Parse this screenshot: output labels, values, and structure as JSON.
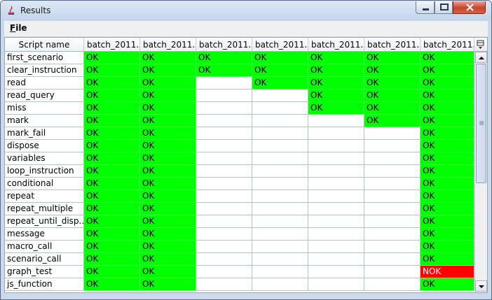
{
  "window": {
    "title": "Results"
  },
  "menu": {
    "file": "File"
  },
  "table": {
    "columns": [
      "Script name",
      "batch_2011...",
      "batch_2011...",
      "batch_2011...",
      "batch_2011...",
      "batch_2011...",
      "batch_2011...",
      "batch_2011..."
    ],
    "rows": [
      {
        "name": "first_scenario",
        "cells": [
          "OK",
          "OK",
          "OK",
          "OK",
          "OK",
          "OK",
          "OK"
        ]
      },
      {
        "name": "clear_instruction",
        "cells": [
          "OK",
          "OK",
          "OK",
          "OK",
          "OK",
          "OK",
          "OK"
        ]
      },
      {
        "name": "read",
        "cells": [
          "OK",
          "OK",
          "",
          "OK",
          "OK",
          "OK",
          "OK"
        ]
      },
      {
        "name": "read_query",
        "cells": [
          "OK",
          "OK",
          "",
          "",
          "OK",
          "OK",
          "OK"
        ]
      },
      {
        "name": "miss",
        "cells": [
          "OK",
          "OK",
          "",
          "",
          "OK",
          "OK",
          "OK"
        ]
      },
      {
        "name": "mark",
        "cells": [
          "OK",
          "OK",
          "",
          "",
          "",
          "OK",
          "OK"
        ]
      },
      {
        "name": "mark_fail",
        "cells": [
          "OK",
          "OK",
          "",
          "",
          "",
          "",
          "OK"
        ]
      },
      {
        "name": "dispose",
        "cells": [
          "OK",
          "OK",
          "",
          "",
          "",
          "",
          "OK"
        ]
      },
      {
        "name": "variables",
        "cells": [
          "OK",
          "OK",
          "",
          "",
          "",
          "",
          "OK"
        ]
      },
      {
        "name": "loop_instruction",
        "cells": [
          "OK",
          "OK",
          "",
          "",
          "",
          "",
          "OK"
        ]
      },
      {
        "name": "conditional",
        "cells": [
          "OK",
          "OK",
          "",
          "",
          "",
          "",
          "OK"
        ]
      },
      {
        "name": "repeat",
        "cells": [
          "OK",
          "OK",
          "",
          "",
          "",
          "",
          "OK"
        ]
      },
      {
        "name": "repeat_multiple",
        "cells": [
          "OK",
          "OK",
          "",
          "",
          "",
          "",
          "OK"
        ]
      },
      {
        "name": "repeat_until_disp...",
        "cells": [
          "OK",
          "OK",
          "",
          "",
          "",
          "",
          "OK"
        ]
      },
      {
        "name": "message",
        "cells": [
          "OK",
          "OK",
          "",
          "",
          "",
          "",
          "OK"
        ]
      },
      {
        "name": "macro_call",
        "cells": [
          "OK",
          "OK",
          "",
          "",
          "",
          "",
          "OK"
        ]
      },
      {
        "name": "scenario_call",
        "cells": [
          "OK",
          "OK",
          "",
          "",
          "",
          "",
          "OK"
        ]
      },
      {
        "name": "graph_test",
        "cells": [
          "OK",
          "OK",
          "",
          "",
          "",
          "",
          "NOK"
        ]
      },
      {
        "name": "js_function",
        "cells": [
          "OK",
          "OK",
          "",
          "",
          "",
          "",
          "OK"
        ]
      }
    ]
  },
  "colors": {
    "ok": "#00ff00",
    "nok": "#ff0000",
    "empty": "#ffffff"
  }
}
